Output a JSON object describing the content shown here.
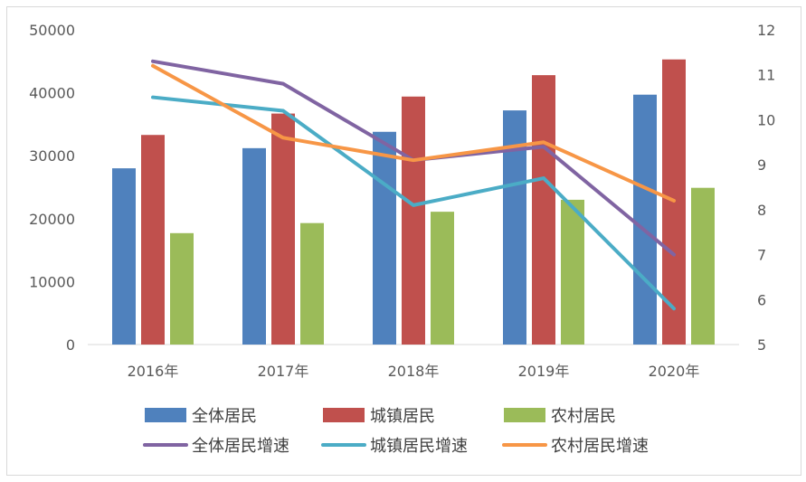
{
  "chart_data": {
    "type": "bar",
    "categories": [
      "2016年",
      "2017年",
      "2018年",
      "2019年",
      "2020年"
    ],
    "series": [
      {
        "name": "全体居民",
        "type": "bar",
        "axis": "left",
        "color": "#4f81bd",
        "values": [
          28000,
          31200,
          33800,
          37200,
          39700
        ]
      },
      {
        "name": "城镇居民",
        "type": "bar",
        "axis": "left",
        "color": "#c0504d",
        "values": [
          33300,
          36700,
          39400,
          42800,
          45300
        ]
      },
      {
        "name": "农村居民",
        "type": "bar",
        "axis": "left",
        "color": "#9bbb59",
        "values": [
          17700,
          19300,
          21100,
          23000,
          24900
        ]
      },
      {
        "name": "全体居民增速",
        "type": "line",
        "axis": "right",
        "color": "#8064a2",
        "values": [
          11.3,
          10.8,
          9.1,
          9.4,
          7.0
        ]
      },
      {
        "name": "城镇居民增速",
        "type": "line",
        "axis": "right",
        "color": "#4bacc6",
        "values": [
          10.5,
          10.2,
          8.1,
          8.7,
          5.8
        ]
      },
      {
        "name": "农村居民增速",
        "type": "line",
        "axis": "right",
        "color": "#f79646",
        "values": [
          11.2,
          9.6,
          9.1,
          9.5,
          8.2
        ]
      }
    ],
    "y_left": {
      "ylim": [
        0,
        50000
      ],
      "ticks": [
        "0",
        "10000",
        "20000",
        "30000",
        "40000",
        "50000"
      ]
    },
    "y_right": {
      "ylim": [
        5,
        12
      ],
      "ticks": [
        "5",
        "6",
        "7",
        "8",
        "9",
        "10",
        "11",
        "12"
      ]
    },
    "grid": false,
    "legend": "bottom"
  }
}
